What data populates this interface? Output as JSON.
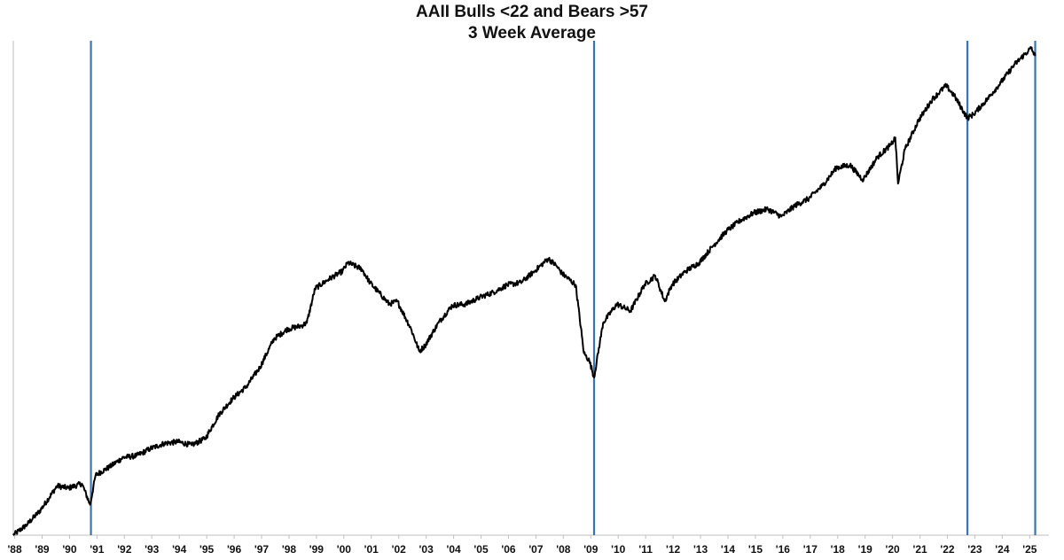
{
  "chart_data": {
    "type": "line",
    "title": "AAII Bulls <22 and Bears >57",
    "subtitle": "3 Week Average",
    "xlabel": "",
    "ylabel": "",
    "y_scale": "log",
    "y_axis_labels_shown": false,
    "grid": false,
    "legend": "none",
    "x_tick_labels": [
      "'88",
      "'89",
      "'90",
      "'91",
      "'92",
      "'93",
      "'94",
      "'95",
      "'96",
      "'97",
      "'98",
      "'99",
      "'00",
      "'01",
      "'02",
      "'03",
      "'04",
      "'05",
      "'06",
      "'07",
      "'08",
      "'09",
      "'10",
      "'11",
      "'12",
      "'13",
      "'14",
      "'15",
      "'16",
      "'17",
      "'18",
      "'19",
      "'20",
      "'21",
      "'22",
      "'23",
      "'24",
      "'25"
    ],
    "xlim": [
      1988.0,
      2025.75
    ],
    "ylim": [
      250,
      6300
    ],
    "series": [
      {
        "color": "#000000",
        "x": [
          1988.0,
          1988.5,
          1989.0,
          1989.6,
          1990.0,
          1990.5,
          1990.8,
          1991.0,
          1991.5,
          1992.0,
          1992.5,
          1993.0,
          1993.5,
          1994.0,
          1994.5,
          1995.0,
          1995.5,
          1996.0,
          1996.5,
          1997.0,
          1997.5,
          1998.0,
          1998.5,
          1998.7,
          1999.0,
          1999.5,
          2000.0,
          2000.2,
          2000.7,
          2001.0,
          2001.7,
          2002.0,
          2002.5,
          2002.8,
          2003.0,
          2003.5,
          2004.0,
          2004.5,
          2005.0,
          2005.5,
          2006.0,
          2006.5,
          2007.0,
          2007.5,
          2007.8,
          2008.0,
          2008.5,
          2008.8,
          2009.0,
          2009.17,
          2009.5,
          2010.0,
          2010.5,
          2011.0,
          2011.4,
          2011.75,
          2012.0,
          2012.5,
          2013.0,
          2013.5,
          2014.0,
          2014.5,
          2015.0,
          2015.5,
          2016.0,
          2016.5,
          2017.0,
          2017.5,
          2018.0,
          2018.5,
          2018.95,
          2019.0,
          2019.5,
          2020.0,
          2020.15,
          2020.25,
          2020.5,
          2021.0,
          2021.5,
          2022.0,
          2022.3,
          2022.78,
          2023.0,
          2023.5,
          2024.0,
          2024.5,
          2025.0,
          2025.1,
          2025.25
        ],
        "y": [
          250,
          268,
          295,
          345,
          340,
          350,
          305,
          370,
          390,
          415,
          420,
          440,
          455,
          460,
          450,
          470,
          550,
          610,
          660,
          750,
          900,
          960,
          980,
          1000,
          1250,
          1330,
          1400,
          1480,
          1420,
          1300,
          1130,
          1150,
          960,
          830,
          860,
          1000,
          1120,
          1130,
          1180,
          1220,
          1280,
          1300,
          1400,
          1520,
          1450,
          1380,
          1280,
          820,
          780,
          700,
          1000,
          1130,
          1080,
          1280,
          1360,
          1150,
          1280,
          1400,
          1480,
          1650,
          1820,
          1950,
          2050,
          2100,
          2000,
          2150,
          2250,
          2450,
          2750,
          2800,
          2550,
          2560,
          2950,
          3200,
          3350,
          2480,
          3100,
          3750,
          4300,
          4700,
          4400,
          3800,
          3900,
          4300,
          4800,
          5400,
          5900,
          6000,
          5700
        ]
      }
    ],
    "vertical_markers": [
      {
        "x": 1990.83,
        "color": "#3a74b0"
      },
      {
        "x": 2009.17,
        "color": "#3a74b0"
      },
      {
        "x": 2022.78,
        "color": "#3a74b0"
      },
      {
        "x": 2025.25,
        "color": "#3a74b0"
      }
    ]
  }
}
